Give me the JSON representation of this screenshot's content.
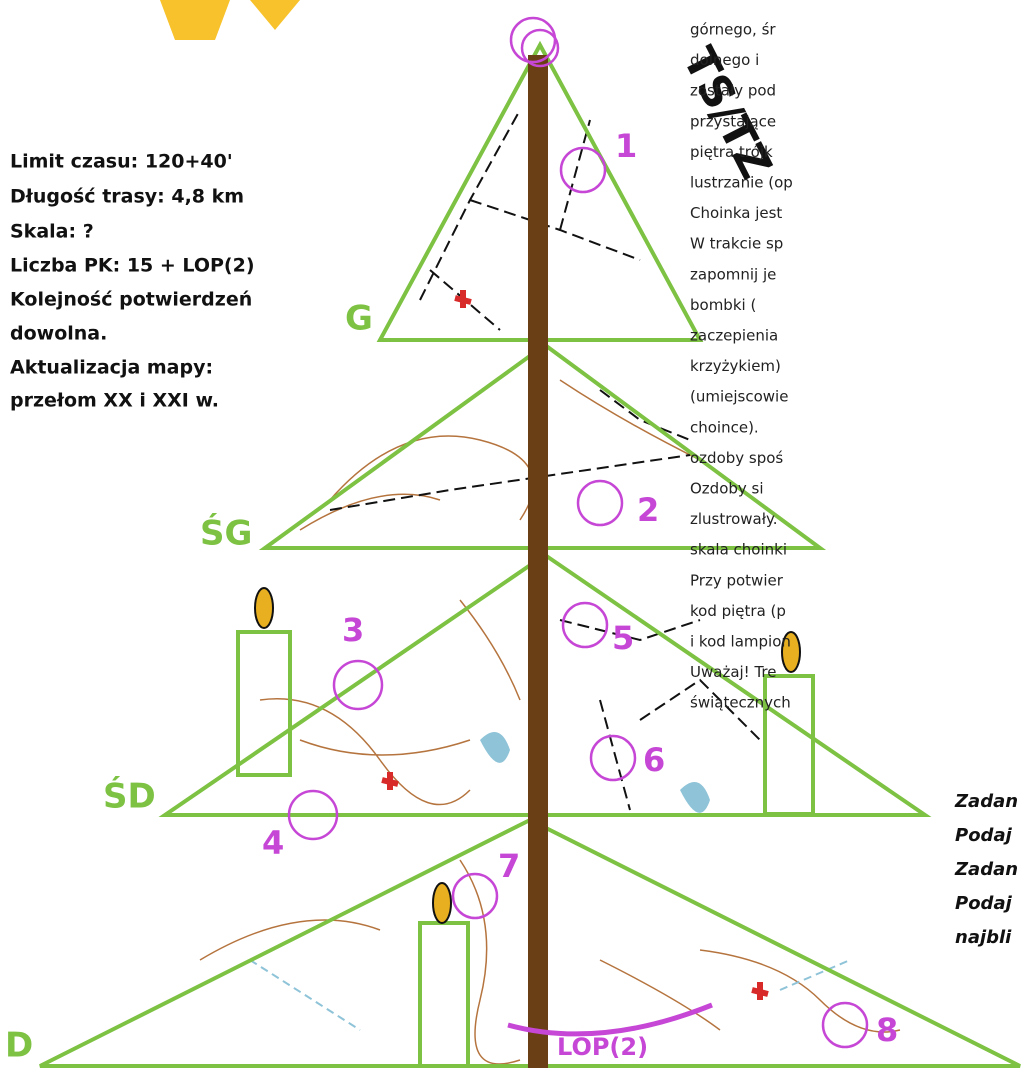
{
  "info": [
    "Limit czasu: 120+40'",
    "Długość trasy: 4,8 km",
    "Skala: ?",
    "Liczba PK: 15 + LOP(2)",
    "Kolejność potwierdzeń",
    "dowolna.",
    "Aktualizacja mapy:",
    "przełom XX i XXI w."
  ],
  "levels": [
    "G",
    "ŚG",
    "ŚD",
    "D"
  ],
  "controls": [
    "1",
    "2",
    "3",
    "4",
    "5",
    "6",
    "7",
    "8"
  ],
  "lop": "LOP(2)",
  "category": "TS/TZ",
  "description": [
    "górnego, śr",
    "dolnego i",
    "zostały pod",
    "przystające",
    "piętra trójk",
    "lustrzanie (op",
    "Choinka jest",
    "W trakcie sp",
    "zapomnij je",
    "bombki (",
    "zaczepienia",
    "krzyżykiem)",
    "(umiejscowie",
    "choince).",
    "ozdoby spoś",
    "Ozdoby si",
    "zlustrowały.",
    "skala choinki",
    "Przy potwier",
    "kod piętra (p",
    "i kod lampion",
    "Uważaj! Tre",
    "świątecznych"
  ],
  "tasks": [
    "Zadan",
    "Podaj",
    "Zadan",
    "Podaj",
    "najbli"
  ]
}
